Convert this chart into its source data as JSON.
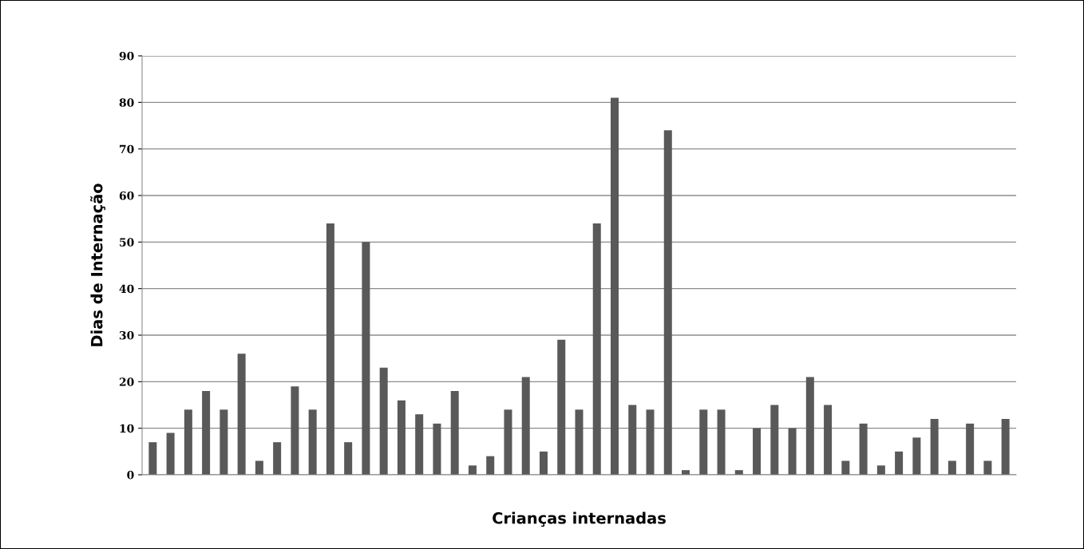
{
  "chart_data": {
    "type": "bar",
    "xlabel": "Crianças internadas",
    "ylabel": "Dias de Internação",
    "categories": [
      null,
      null,
      null,
      null,
      null,
      null,
      null,
      null,
      null,
      null,
      null,
      null,
      null,
      null,
      null,
      null,
      null,
      null,
      null,
      null,
      null,
      null,
      null,
      null,
      null,
      null,
      null,
      null,
      null,
      null,
      null,
      null,
      null,
      null,
      null,
      null,
      null,
      null,
      null,
      null,
      null,
      null,
      null,
      null,
      null,
      null,
      null,
      null,
      null
    ],
    "values": [
      7,
      9,
      14,
      18,
      14,
      26,
      3,
      7,
      19,
      14,
      54,
      7,
      50,
      23,
      16,
      13,
      11,
      18,
      2,
      4,
      14,
      21,
      5,
      29,
      14,
      54,
      81,
      15,
      14,
      74,
      1,
      14,
      14,
      1,
      10,
      15,
      10,
      21,
      15,
      3,
      11,
      2,
      5,
      8,
      12,
      3,
      11,
      3,
      12
    ],
    "color": "#595959",
    "ylim": [
      0,
      90
    ],
    "yticks": [
      0,
      10,
      20,
      30,
      40,
      50,
      60,
      70,
      80,
      90
    ],
    "grid": "y",
    "legend": false
  }
}
